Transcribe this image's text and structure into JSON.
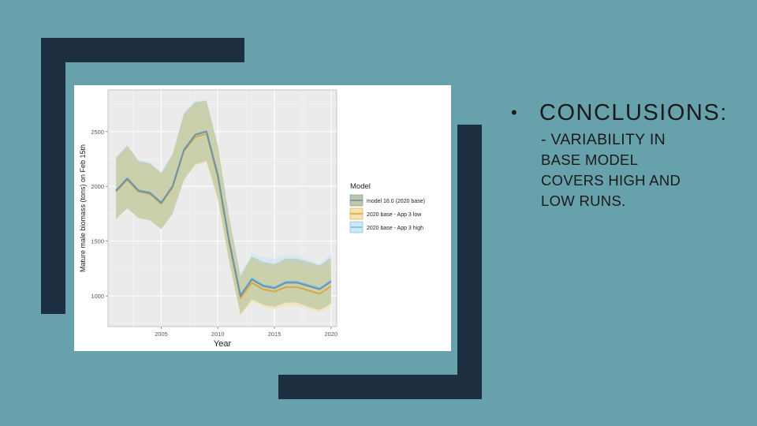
{
  "slide": {
    "background_color": "#67a1ab",
    "frame_color": "#1c2e40",
    "bullet": "•",
    "heading": "CONCLUSIONS:",
    "sub_lines": [
      "- VARIABILITY IN",
      "BASE MODEL",
      "COVERS HIGH AND",
      "LOW RUNS."
    ]
  },
  "chart_data": {
    "type": "line",
    "xlabel": "Year",
    "ylabel": "Mature male biomass (tons) on Feb 15th",
    "xlim": [
      2000.3,
      2020.5
    ],
    "ylim": [
      720,
      2880
    ],
    "xticks": [
      2005,
      2010,
      2015,
      2020
    ],
    "yticks": [
      1000,
      1500,
      2000,
      2500
    ],
    "grid": true,
    "legend_title": "Model",
    "legend_position": "right",
    "x": [
      2001,
      2002,
      2003,
      2004,
      2005,
      2006,
      2007,
      2008,
      2009,
      2010,
      2011,
      2012,
      2013,
      2014,
      2015,
      2016,
      2017,
      2018,
      2019,
      2020
    ],
    "series": [
      {
        "name": "model 16.0 (2020 base)",
        "color": "#6e8eb0",
        "band_color": "#bfc8a4",
        "values": [
          1960,
          2070,
          1960,
          1940,
          1850,
          2000,
          2330,
          2470,
          2500,
          2100,
          1500,
          1000,
          1150,
          1090,
          1070,
          1120,
          1120,
          1090,
          1060,
          1130
        ],
        "lower": [
          1700,
          1800,
          1710,
          1690,
          1610,
          1750,
          2060,
          2200,
          2230,
          1890,
          1320,
          830,
          970,
          920,
          900,
          940,
          940,
          900,
          870,
          930
        ],
        "upper": [
          2260,
          2370,
          2230,
          2210,
          2120,
          2290,
          2660,
          2770,
          2780,
          2370,
          1720,
          1180,
          1360,
          1310,
          1290,
          1340,
          1340,
          1310,
          1280,
          1350
        ]
      },
      {
        "name": "2020 base - App 3 low",
        "color": "#d9a535",
        "band_color": "#f3e3b0",
        "values": [
          1950,
          2060,
          1950,
          1930,
          1840,
          1990,
          2320,
          2450,
          2480,
          2080,
          1480,
          980,
          1120,
          1060,
          1040,
          1080,
          1080,
          1050,
          1020,
          1090
        ],
        "lower": [
          1700,
          1800,
          1710,
          1690,
          1610,
          1750,
          2060,
          2190,
          2220,
          1870,
          1300,
          820,
          950,
          900,
          880,
          910,
          910,
          880,
          850,
          900
        ],
        "upper": [
          2240,
          2350,
          2210,
          2190,
          2100,
          2270,
          2640,
          2750,
          2760,
          2350,
          1690,
          1160,
          1330,
          1270,
          1250,
          1290,
          1290,
          1260,
          1240,
          1300
        ]
      },
      {
        "name": "2020 base - App 3 high",
        "color": "#6fc0e0",
        "band_color": "#cfe6f3",
        "values": [
          1965,
          2075,
          1965,
          1945,
          1855,
          2005,
          2335,
          2475,
          2505,
          2110,
          1510,
          1010,
          1160,
          1100,
          1080,
          1130,
          1130,
          1100,
          1070,
          1140
        ],
        "lower": [
          1710,
          1810,
          1720,
          1700,
          1620,
          1760,
          2070,
          2210,
          2240,
          1900,
          1330,
          840,
          980,
          930,
          910,
          950,
          950,
          910,
          880,
          940
        ],
        "upper": [
          2270,
          2380,
          2240,
          2220,
          2130,
          2300,
          2670,
          2780,
          2790,
          2380,
          1730,
          1200,
          1390,
          1350,
          1340,
          1380,
          1370,
          1330,
          1290,
          1390
        ]
      }
    ]
  }
}
